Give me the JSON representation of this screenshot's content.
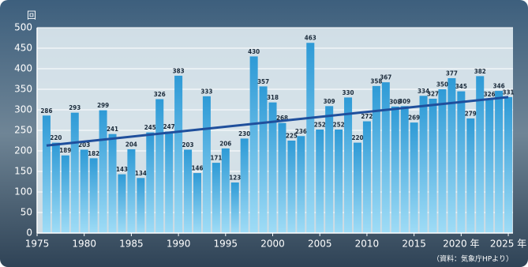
{
  "chart_data": {
    "type": "bar",
    "y_label": "回",
    "source": "（資料：気象庁HPより）",
    "x": [
      1976,
      1977,
      1978,
      1979,
      1980,
      1981,
      1982,
      1983,
      1984,
      1985,
      1986,
      1987,
      1988,
      1989,
      1990,
      1991,
      1992,
      1993,
      1994,
      1995,
      1996,
      1997,
      1998,
      1999,
      2000,
      2001,
      2002,
      2003,
      2004,
      2005,
      2006,
      2007,
      2008,
      2009,
      2010,
      2011,
      2012,
      2013,
      2014,
      2015,
      2016,
      2017,
      2018,
      2019,
      2020,
      2021,
      2022,
      2023,
      2024,
      2025
    ],
    "values": [
      286,
      220,
      189,
      293,
      203,
      182,
      299,
      241,
      143,
      204,
      134,
      245,
      326,
      247,
      383,
      203,
      146,
      333,
      171,
      206,
      123,
      230,
      430,
      357,
      318,
      268,
      225,
      236,
      463,
      252,
      309,
      252,
      330,
      220,
      272,
      358,
      367,
      308,
      309,
      269,
      334,
      327,
      350,
      377,
      345,
      279,
      382,
      326,
      346,
      331
    ],
    "color": "#3aa6de",
    "trend": {
      "x": [
        1976,
        2025
      ],
      "values": [
        213,
        331
      ],
      "color": "#1f4f9c"
    },
    "xlim": [
      1975,
      2025.5
    ],
    "xticks": [
      1975,
      1980,
      1985,
      1990,
      1995,
      2000,
      2005,
      2010,
      2015,
      {
        "value": 2020,
        "label": "2020 年"
      },
      {
        "value": 2025,
        "label": "2025 年"
      }
    ],
    "ylim": [
      0,
      500
    ],
    "yticks": [
      0,
      50,
      100,
      150,
      200,
      250,
      300,
      350,
      400,
      450,
      500
    ],
    "grid": true
  }
}
